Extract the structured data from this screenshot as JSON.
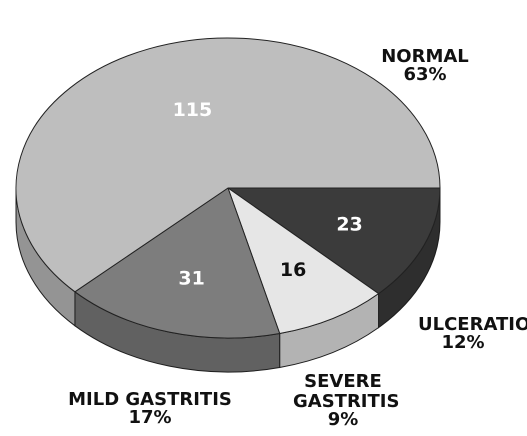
{
  "chart_data": {
    "type": "pie",
    "categories": [
      "ULCERATION",
      "SEVERE GASTRITIS",
      "MILD GASTRITIS",
      "NORMAL"
    ],
    "values": [
      23,
      16,
      31,
      115
    ],
    "percents": [
      {
        "value": 12,
        "label": "12%"
      },
      {
        "value": 9,
        "label": "9%"
      },
      {
        "value": 17,
        "label": "17%"
      },
      {
        "value": 63,
        "label": "63%"
      }
    ],
    "colors": [
      "#3b3b3b",
      "#e6e6e6",
      "#7d7d7d",
      "#bebebe"
    ]
  }
}
